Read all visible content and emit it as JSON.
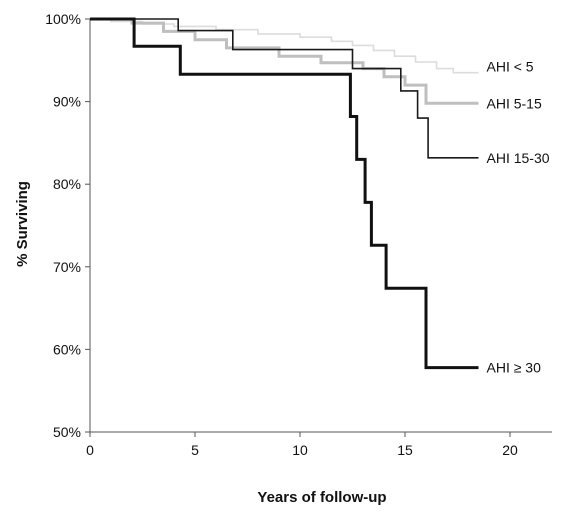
{
  "chart_data": {
    "type": "line",
    "step": true,
    "title": "",
    "xlabel": "Years of follow-up",
    "ylabel": "% Surviving",
    "xlim": [
      0,
      22
    ],
    "ylim": [
      50,
      100
    ],
    "x_ticks": [
      0,
      5,
      10,
      15,
      20
    ],
    "y_ticks": [
      50,
      60,
      70,
      80,
      90,
      100
    ],
    "x_tick_labels": [
      "0",
      "5",
      "10",
      "15",
      "20"
    ],
    "y_tick_labels": [
      "50%",
      "60%",
      "70%",
      "80%",
      "90%",
      "100%"
    ],
    "grid": false,
    "legend": "inline-right",
    "series": [
      {
        "name": "AHI < 5",
        "color": "#dcdcdc",
        "points": [
          [
            0,
            100
          ],
          [
            1,
            100
          ],
          [
            1,
            99.7
          ],
          [
            2.5,
            99.7
          ],
          [
            2.5,
            99.4
          ],
          [
            4,
            99.4
          ],
          [
            4,
            99.1
          ],
          [
            6,
            99.1
          ],
          [
            6,
            98.7
          ],
          [
            8,
            98.7
          ],
          [
            8,
            98.2
          ],
          [
            10,
            98.2
          ],
          [
            10,
            97.8
          ],
          [
            11.5,
            97.8
          ],
          [
            11.5,
            97.3
          ],
          [
            12.5,
            97.3
          ],
          [
            12.5,
            96.8
          ],
          [
            13.5,
            96.8
          ],
          [
            13.5,
            96.2
          ],
          [
            14.5,
            96.2
          ],
          [
            14.5,
            95.5
          ],
          [
            15.5,
            95.5
          ],
          [
            15.5,
            94.8
          ],
          [
            16.5,
            94.8
          ],
          [
            16.5,
            94.0
          ],
          [
            17.3,
            94.0
          ],
          [
            17.3,
            93.5
          ],
          [
            18.5,
            93.5
          ]
        ]
      },
      {
        "name": "AHI 5-15",
        "color": "#bfbfbf",
        "points": [
          [
            0,
            100
          ],
          [
            2,
            100
          ],
          [
            2,
            99.5
          ],
          [
            3.5,
            99.5
          ],
          [
            3.5,
            98.5
          ],
          [
            5,
            98.5
          ],
          [
            5,
            97.5
          ],
          [
            6.5,
            97.5
          ],
          [
            6.5,
            96.5
          ],
          [
            9,
            96.5
          ],
          [
            9,
            95.5
          ],
          [
            11,
            95.5
          ],
          [
            11,
            94.7
          ],
          [
            13,
            94.7
          ],
          [
            13,
            94.0
          ],
          [
            14,
            94.0
          ],
          [
            14,
            93.0
          ],
          [
            15,
            93.0
          ],
          [
            15,
            92.0
          ],
          [
            16,
            92.0
          ],
          [
            16,
            89.8
          ],
          [
            18.5,
            89.8
          ]
        ]
      },
      {
        "name": "AHI 15-30",
        "color": "#1a1a1a",
        "points": [
          [
            0,
            100
          ],
          [
            4.2,
            100
          ],
          [
            4.2,
            98.6
          ],
          [
            6.8,
            98.6
          ],
          [
            6.8,
            96.3
          ],
          [
            12.5,
            96.3
          ],
          [
            12.5,
            94.0
          ],
          [
            14.8,
            94.0
          ],
          [
            14.8,
            91.3
          ],
          [
            15.6,
            91.3
          ],
          [
            15.6,
            88.0
          ],
          [
            16.1,
            88.0
          ],
          [
            16.1,
            83.2
          ],
          [
            18.5,
            83.2
          ]
        ]
      },
      {
        "name": "AHI ≥ 30",
        "color": "#111111",
        "points": [
          [
            0,
            100
          ],
          [
            2.1,
            100
          ],
          [
            2.1,
            96.7
          ],
          [
            4.3,
            96.7
          ],
          [
            4.3,
            93.3
          ],
          [
            12.4,
            93.3
          ],
          [
            12.4,
            88.2
          ],
          [
            12.7,
            88.2
          ],
          [
            12.7,
            83.0
          ],
          [
            13.1,
            83.0
          ],
          [
            13.1,
            77.8
          ],
          [
            13.4,
            77.8
          ],
          [
            13.4,
            72.6
          ],
          [
            14.1,
            72.6
          ],
          [
            14.1,
            67.4
          ],
          [
            16.0,
            67.4
          ],
          [
            16.0,
            57.8
          ],
          [
            18.5,
            57.8
          ]
        ]
      }
    ]
  }
}
